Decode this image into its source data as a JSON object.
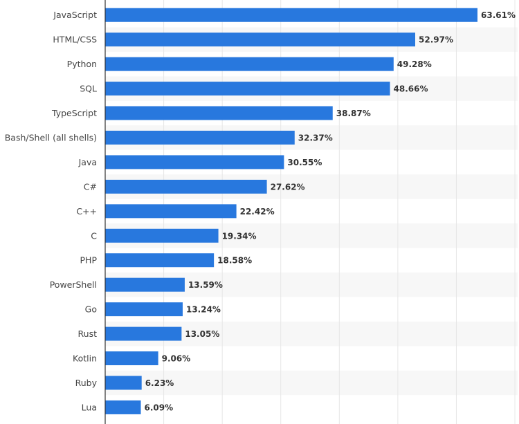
{
  "chart_data": {
    "type": "bar",
    "orientation": "horizontal",
    "title": "",
    "xlabel": "",
    "ylabel": "",
    "value_suffix": "%",
    "xlim": [
      0,
      70
    ],
    "grid": true,
    "legend": "none",
    "bar_color": "#2878de",
    "stripe_color": "#f7f7f7",
    "grid_color": "#e6e6e6",
    "axis_color": "#333333",
    "categories": [
      "JavaScript",
      "HTML/CSS",
      "Python",
      "SQL",
      "TypeScript",
      "Bash/Shell (all shells)",
      "Java",
      "C#",
      "C++",
      "C",
      "PHP",
      "PowerShell",
      "Go",
      "Rust",
      "Kotlin",
      "Ruby",
      "Lua"
    ],
    "values": [
      63.61,
      52.97,
      49.28,
      48.66,
      38.87,
      32.37,
      30.55,
      27.62,
      22.42,
      19.34,
      18.58,
      13.59,
      13.24,
      13.05,
      9.06,
      6.23,
      6.09
    ],
    "value_labels": [
      "63.61%",
      "52.97%",
      "49.28%",
      "48.66%",
      "38.87%",
      "32.37%",
      "30.55%",
      "27.62%",
      "22.42%",
      "19.34%",
      "18.58%",
      "13.59%",
      "13.24%",
      "13.05%",
      "9.06%",
      "6.23%",
      "6.09%"
    ]
  }
}
